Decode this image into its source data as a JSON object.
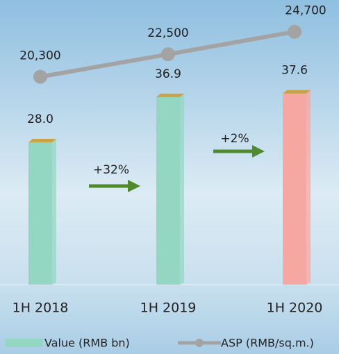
{
  "chart_data": {
    "type": "bar",
    "categories": [
      "1H 2018",
      "1H 2019",
      "1H 2020"
    ],
    "series": [
      {
        "name": "Value (RMB bn)",
        "type": "bar",
        "colors": [
          "#93d6c2",
          "#93d6c2",
          "#f6a7a2"
        ],
        "values": [
          28.0,
          36.9,
          37.6
        ],
        "value_labels": [
          "28.0",
          "36.9",
          "37.6"
        ]
      },
      {
        "name": "ASP (RMB/sq.m.)",
        "type": "line",
        "axis": "y2",
        "color": "#a3a3a3",
        "values": [
          20300,
          22500,
          24700
        ],
        "value_labels": [
          "20,300",
          "22,500",
          "24,700"
        ]
      }
    ],
    "annotations": [
      "+32%",
      "+2%"
    ],
    "ylim": [
      0,
      56
    ],
    "y2lim": [
      0,
      27800
    ]
  }
}
